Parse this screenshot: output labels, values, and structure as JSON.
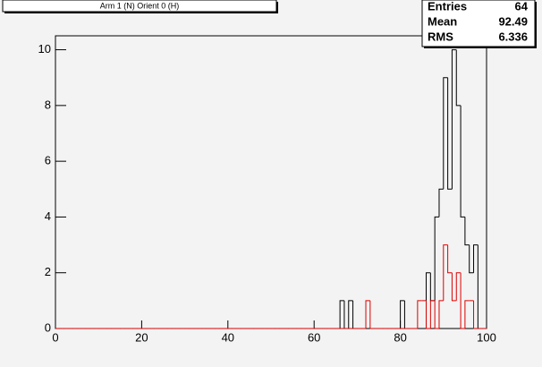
{
  "chart_data": {
    "type": "histogram",
    "title": "Arm 1 (N) Orient 0 (H)",
    "bins": [
      0,
      1,
      2,
      3,
      4,
      5,
      6,
      7,
      8,
      9,
      10,
      11,
      12,
      13,
      14,
      15,
      16,
      17,
      18,
      19,
      20,
      21,
      22,
      23,
      24,
      25,
      26,
      27,
      28,
      29,
      30,
      31,
      32,
      33,
      34,
      35,
      36,
      37,
      38,
      39,
      40,
      41,
      42,
      43,
      44,
      45,
      46,
      47,
      48,
      49,
      50,
      51,
      52,
      53,
      54,
      55,
      56,
      57,
      58,
      59,
      60,
      61,
      62,
      63,
      64,
      65,
      66,
      67,
      68,
      69,
      70,
      71,
      72,
      73,
      74,
      75,
      76,
      77,
      78,
      79,
      80,
      81,
      82,
      83,
      84,
      85,
      86,
      87,
      88,
      89,
      90,
      91,
      92,
      93,
      94,
      95,
      96,
      97,
      98,
      99,
      100
    ],
    "series": [
      {
        "color": "#000000",
        "values": [
          0,
          0,
          0,
          0,
          0,
          0,
          0,
          0,
          0,
          0,
          0,
          0,
          0,
          0,
          0,
          0,
          0,
          0,
          0,
          0,
          0,
          0,
          0,
          0,
          0,
          0,
          0,
          0,
          0,
          0,
          0,
          0,
          0,
          0,
          0,
          0,
          0,
          0,
          0,
          0,
          0,
          0,
          0,
          0,
          0,
          0,
          0,
          0,
          0,
          0,
          0,
          0,
          0,
          0,
          0,
          0,
          0,
          0,
          0,
          0,
          0,
          0,
          0,
          0,
          0,
          0,
          1,
          0,
          1,
          0,
          0,
          0,
          0,
          0,
          0,
          0,
          0,
          0,
          0,
          0,
          1,
          0,
          0,
          0,
          0,
          0,
          2,
          1,
          4,
          5,
          9,
          5,
          10,
          8,
          4,
          3,
          2,
          3,
          0,
          0
        ]
      },
      {
        "color": "#dd0000",
        "values": [
          0,
          0,
          0,
          0,
          0,
          0,
          0,
          0,
          0,
          0,
          0,
          0,
          0,
          0,
          0,
          0,
          0,
          0,
          0,
          0,
          0,
          0,
          0,
          0,
          0,
          0,
          0,
          0,
          0,
          0,
          0,
          0,
          0,
          0,
          0,
          0,
          0,
          0,
          0,
          0,
          0,
          0,
          0,
          0,
          0,
          0,
          0,
          0,
          0,
          0,
          0,
          0,
          0,
          0,
          0,
          0,
          0,
          0,
          0,
          0,
          0,
          0,
          0,
          0,
          0,
          0,
          0,
          0,
          0,
          0,
          0,
          0,
          1,
          0,
          0,
          0,
          0,
          0,
          0,
          0,
          0,
          0,
          0,
          0,
          1,
          1,
          0,
          1,
          0,
          1,
          3,
          2,
          1,
          2,
          0,
          1,
          1,
          0,
          0,
          0
        ]
      }
    ],
    "xlim": [
      0,
      100
    ],
    "xticks": [
      0,
      20,
      40,
      60,
      80,
      100
    ],
    "ylim": [
      0,
      10.5
    ],
    "yticks": [
      0,
      2,
      4,
      6,
      8,
      10
    ],
    "stats": [
      {
        "label": "Entries",
        "value": 64
      },
      {
        "label": "Mean",
        "value": 92.49
      },
      {
        "label": "RMS",
        "value": 6.336
      }
    ]
  }
}
